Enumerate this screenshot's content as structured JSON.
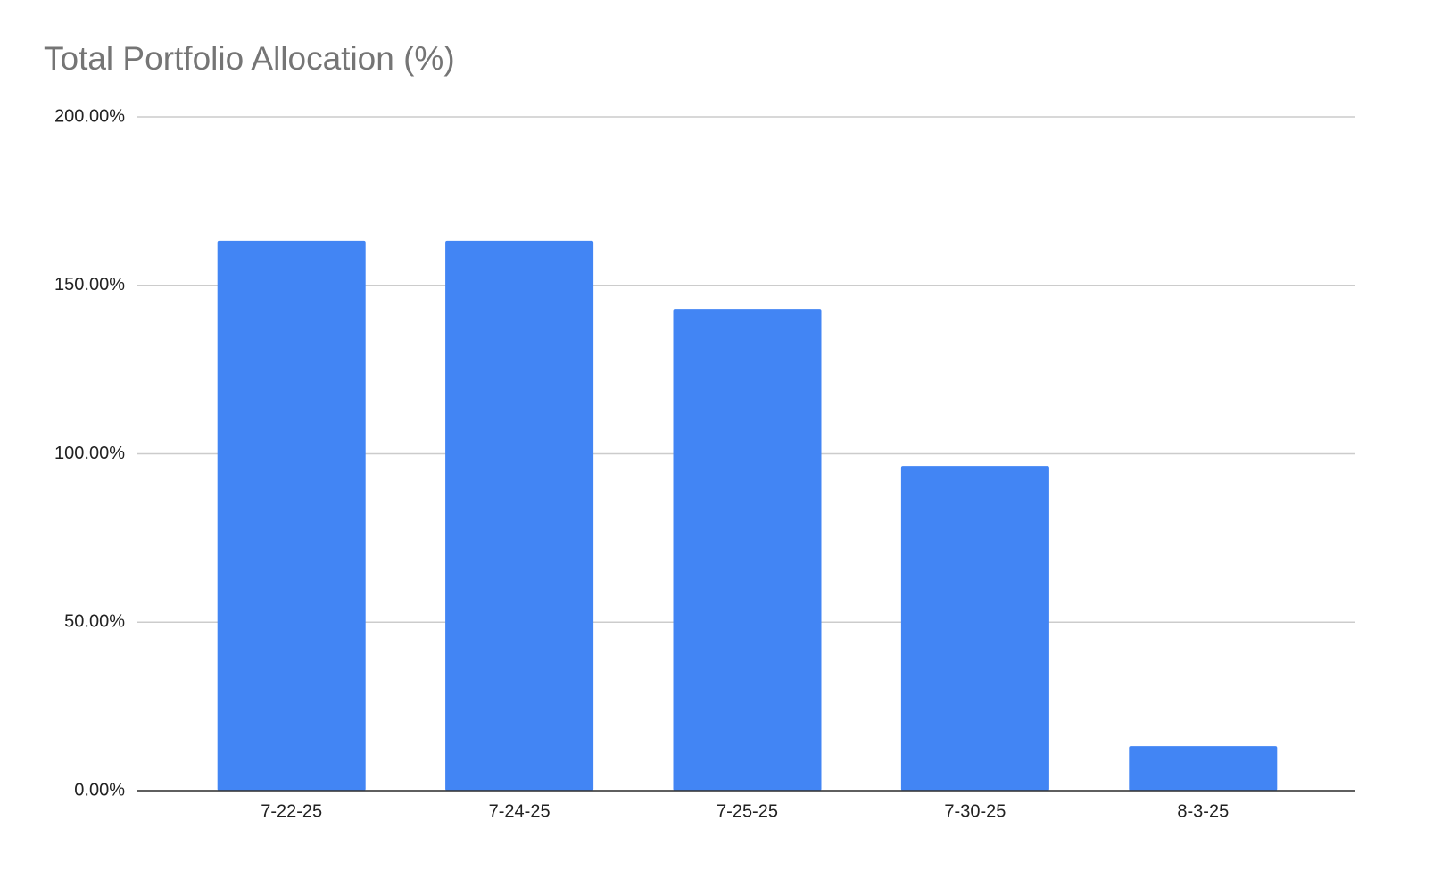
{
  "chart_data": {
    "type": "bar",
    "title": "Total Portfolio Allocation (%)",
    "categories": [
      "7-22-25",
      "7-24-25",
      "7-25-25",
      "7-30-25",
      "8-3-25"
    ],
    "values": [
      163.2,
      163.2,
      143.0,
      96.4,
      13.2
    ],
    "color": "#4285f4",
    "ylim": [
      0,
      200
    ],
    "yticks": [
      {
        "value": 0,
        "label": "0.00%"
      },
      {
        "value": 50,
        "label": "50.00%"
      },
      {
        "value": 100,
        "label": "100.00%"
      },
      {
        "value": 150,
        "label": "150.00%"
      },
      {
        "value": 200,
        "label": "200.00%"
      }
    ],
    "grid": true
  }
}
